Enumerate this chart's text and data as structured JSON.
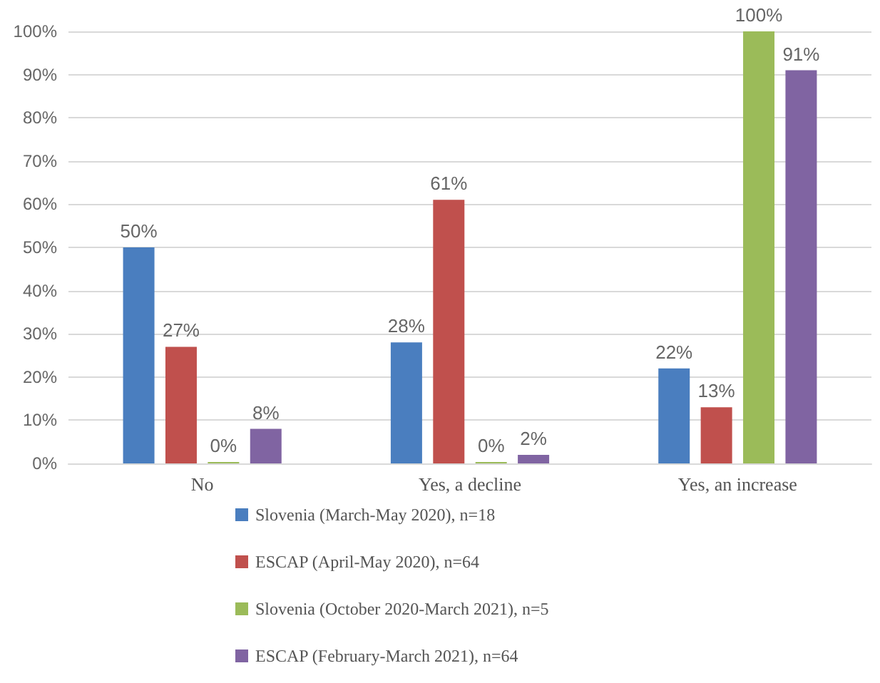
{
  "chart_data": {
    "type": "bar",
    "categories": [
      "No",
      "Yes, a decline",
      "Yes, an increase"
    ],
    "series": [
      {
        "name": "Slovenia (March-May 2020), n=18",
        "color": "#4a7ebf",
        "values": [
          50,
          28,
          22
        ],
        "value_labels": [
          "50%",
          "28%",
          "22%"
        ]
      },
      {
        "name": "ESCAP (April-May 2020), n=64",
        "color": "#c0504d",
        "values": [
          27,
          61,
          13
        ],
        "value_labels": [
          "27%",
          "61%",
          "13%"
        ]
      },
      {
        "name": "Slovenia (October 2020-March 2021), n=5",
        "color": "#9bbb59",
        "values": [
          0,
          0,
          100
        ],
        "value_labels": [
          "0%",
          "0%",
          "100%"
        ]
      },
      {
        "name": "ESCAP (February-March 2021), n=64",
        "color": "#8064a2",
        "values": [
          8,
          2,
          91
        ],
        "value_labels": [
          "8%",
          "2%",
          "91%"
        ]
      }
    ],
    "ylim": [
      0,
      100
    ],
    "yticks": [
      {
        "value": 0,
        "label": "0%"
      },
      {
        "value": 10,
        "label": "10%"
      },
      {
        "value": 20,
        "label": "20%"
      },
      {
        "value": 30,
        "label": "30%"
      },
      {
        "value": 40,
        "label": "40%"
      },
      {
        "value": 50,
        "label": "50%"
      },
      {
        "value": 60,
        "label": "60%"
      },
      {
        "value": 70,
        "label": "70%"
      },
      {
        "value": 80,
        "label": "80%"
      },
      {
        "value": 90,
        "label": "90%"
      },
      {
        "value": 100,
        "label": "100%"
      }
    ],
    "grid": "y",
    "legend": "bottom"
  }
}
